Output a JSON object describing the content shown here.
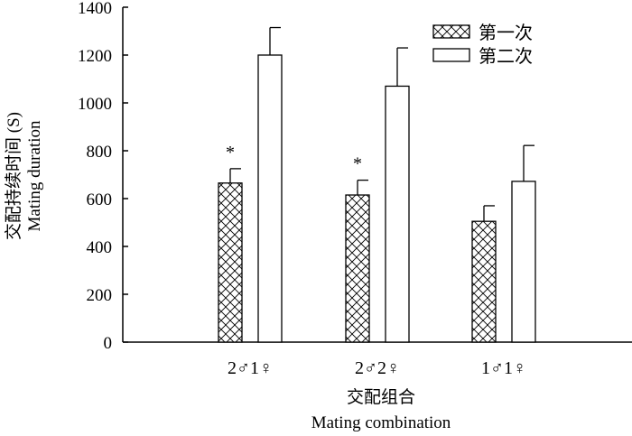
{
  "chart_data": {
    "type": "bar",
    "categories": [
      "2♂1♀",
      "2♂2♀",
      "1♂1♀"
    ],
    "series": [
      {
        "name": "第一次",
        "values": [
          665,
          615,
          505
        ],
        "errors": [
          60,
          62,
          65
        ],
        "pattern": "crosshatch",
        "annotations": [
          "*",
          "*",
          ""
        ]
      },
      {
        "name": "第二次",
        "values": [
          1200,
          1070,
          672
        ],
        "errors": [
          115,
          160,
          150
        ],
        "pattern": "none"
      }
    ],
    "xlabel": "交配组合",
    "xlabel_en": "Mating combination",
    "ylabel": "交配持续时间 (S)",
    "ylabel_en": "Mating duration",
    "ylim": [
      0,
      1400
    ],
    "yticks": [
      0,
      200,
      400,
      600,
      800,
      1000,
      1200,
      1400
    ],
    "legend_position": "top-right",
    "grid": false,
    "colors": {
      "bar_stroke": "#000000",
      "bar_fill": "#ffffff"
    }
  }
}
